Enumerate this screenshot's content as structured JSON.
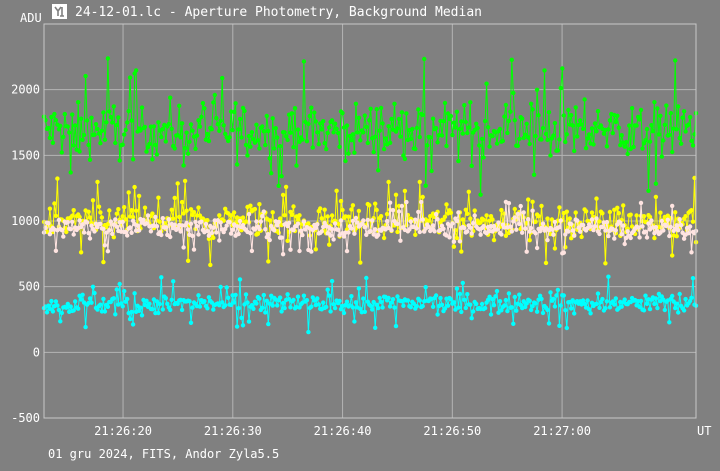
{
  "header": {
    "title": "24-12-01.lc - Aperture Photometry, Background Median",
    "icon": "app-logo-icon"
  },
  "footer": {
    "info": "01 gru 2024, FITS, Andor Zyla5.5"
  },
  "chart_data": {
    "type": "line",
    "title": "24-12-01.lc - Aperture Photometry, Background Median",
    "ylabel": "ADU",
    "xlabel": "UT",
    "xlim": [
      "21:26:12.8",
      "21:27:12.2"
    ],
    "ylim": [
      -500,
      2500
    ],
    "x_ticks": [
      "21:26:20",
      "21:26:30",
      "21:26:40",
      "21:26:50",
      "21:27:00"
    ],
    "y_ticks": [
      -500,
      0,
      500,
      1000,
      1500,
      2000
    ],
    "grid": true,
    "background": "#808080",
    "marker": "circle",
    "samples_per_series": 440,
    "series": [
      {
        "color": "#00ff00",
        "mean": 1690,
        "spread": 190,
        "min_approx": 1200,
        "max_approx": 2330
      },
      {
        "color": "#ffff00",
        "mean": 1000,
        "spread": 120,
        "min_approx": 550,
        "max_approx": 1380
      },
      {
        "color": "#ffe4e1",
        "mean": 950,
        "spread": 70,
        "min_approx": 720,
        "max_approx": 1180
      },
      {
        "color": "#00ffff",
        "mean": 370,
        "spread": 75,
        "min_approx": -50,
        "max_approx": 600
      }
    ]
  }
}
